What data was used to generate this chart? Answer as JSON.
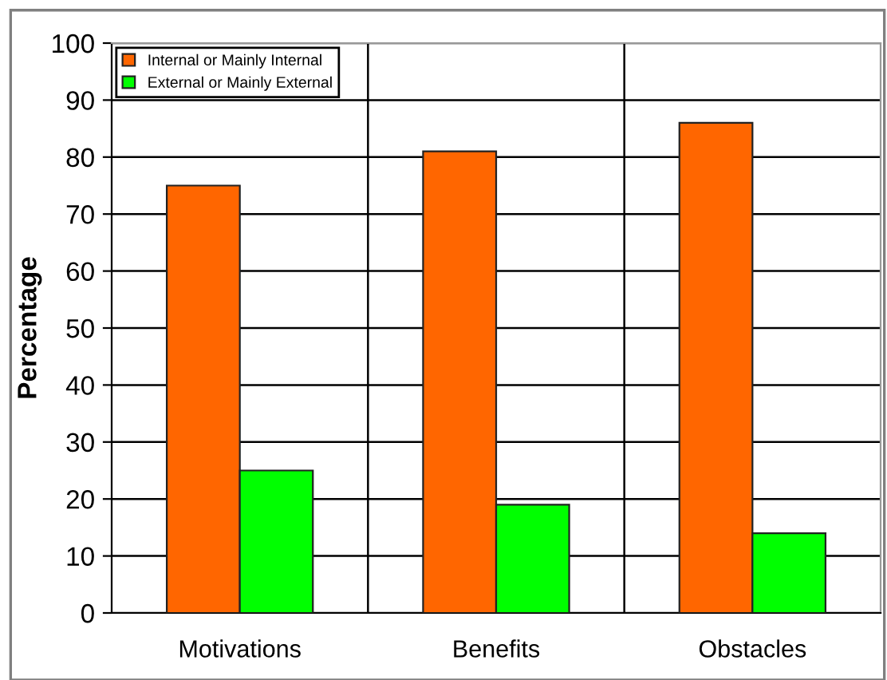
{
  "chart_data": {
    "type": "bar",
    "ylabel": "Percentage",
    "categories": [
      "Motivations",
      "Benefits",
      "Obstacles"
    ],
    "series": [
      {
        "name": "Internal or Mainly Internal",
        "color": "#ff6600",
        "values": [
          75,
          81,
          86
        ]
      },
      {
        "name": "External or Mainly External",
        "color": "#00ff00",
        "values": [
          25,
          19,
          14
        ]
      }
    ],
    "ylim": [
      0,
      100
    ],
    "yticks": [
      0,
      10,
      20,
      30,
      40,
      50,
      60,
      70,
      80,
      90,
      100
    ],
    "grid": true,
    "legend": "top left"
  }
}
